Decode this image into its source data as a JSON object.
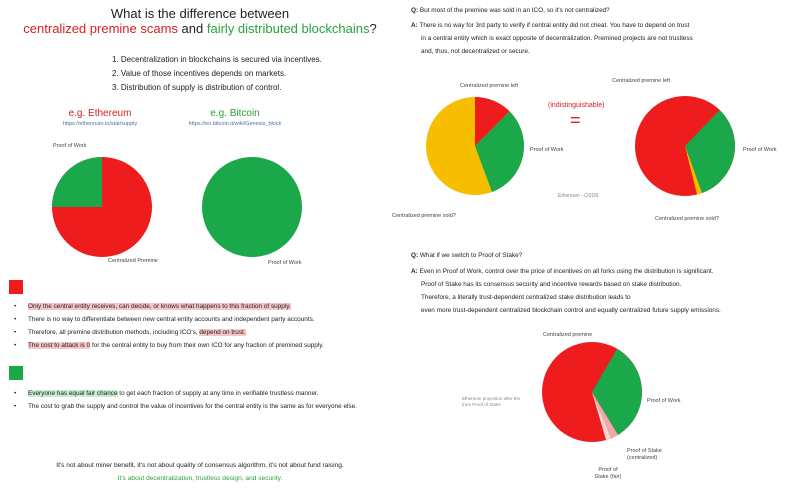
{
  "header": {
    "line1": "What is the difference between",
    "part_red": "centralized premine scams",
    "part_and": "and",
    "part_green": "fairly distributed blockchains",
    "part_q": "?"
  },
  "reasons": [
    "1.   Decentralization in blockchains is secured via incentives.",
    "2.   Value of those incentives depends on markets.",
    "3.   Distribution of supply is distribution of control."
  ],
  "ethereum": {
    "label": "e.g. Ethereum",
    "url": "https://etherscan.io/stat/supply",
    "pow_label": "Proof of Work",
    "premine_label": "Centralized Premine"
  },
  "bitcoin": {
    "label": "e.g. Bitcoin",
    "url": "https://en.bitcoin.it/wiki/Genesis_block",
    "pow_label": "Proof of Work"
  },
  "red_bullets": [
    {
      "pre": "",
      "hl": "Only the central entity receives, can decide, or knows what happens to this fraction of supply.",
      "post": ""
    },
    {
      "pre": "There is no way to differentiate between new central entity accounts and independent party accounts.",
      "hl": "",
      "post": ""
    },
    {
      "pre": "Therefore, all premine distribution methods, including ICO's, ",
      "hl": "depend on trust.",
      "post": ""
    },
    {
      "pre": "",
      "hl": "The cost to attack is 0",
      "post": " for the central entity to buy from their own ICO for any fraction of premined supply."
    }
  ],
  "green_bullets": [
    {
      "pre": "",
      "hl": "Everyone has equal fair chance",
      "post": " to get each fraction of supply at any time in verifiable trustless manner."
    },
    {
      "pre": "The cost to grab the supply and control the value of incentives for the central entity is the same as for everyone else.",
      "hl": "",
      "post": ""
    }
  ],
  "footer": {
    "line1": "It's not about miner benefit,  it's not about quality of consensus algorithm,  it's not about fund raising.",
    "line2": "It's about decentralization, trustless design, and security."
  },
  "qa1": {
    "q_mark": "Q:",
    "q_text": "But most of the premine was sold in an ICO, so it's not centralized?",
    "a_mark": "A:",
    "a_lines": [
      "There is no way for 3rd party to verify if central entity did not cheat. You have to depend on trust",
      "in a central entity which is exact opposite of decentralization. Premined projects are not trustless",
      "and, thus, not decentralized or secure."
    ]
  },
  "compare": {
    "left_premine_left": "Centralized premine left",
    "left_pow": "Proof of Work",
    "left_sold": "Centralized premine sold?",
    "indistinguishable": "(indistinguishable)",
    "equals": "=",
    "source": "Ethereum - (2018)",
    "right_premine_left": "Centralized premine left",
    "right_pow": "Proof of Work",
    "right_sold": "Centralized premine sold?"
  },
  "qa2": {
    "q_mark": "Q:",
    "q_text": "What if we switch to Proof of Stake?",
    "a_mark": "A:",
    "a_lines": [
      "Even in Proof of Work, control over the price of incentives on all forks using the distribution is significant.",
      "Proof of Stake has its consensus security and incentive rewards based on stake distribution.",
      "Therefore, a literally trust-dependent centralized stake distribution leads to",
      "even more trust-dependent centralized blockchain control and equally centralized future supply emissions."
    ]
  },
  "pos_pie": {
    "premine": "Centralized premine",
    "pow": "Proof of Work",
    "note": "Ethereum projection after 5% from Proof of Stake",
    "pos_central": "Proof of Stake (centralized)",
    "pos_fair": "Proof of Stake (fair)"
  },
  "colors": {
    "red": "#ee1c1c",
    "green": "#1aa84a",
    "yellow": "#f7be00",
    "pink": "#f0a8a8",
    "light_pink": "#fbd4d4"
  }
}
